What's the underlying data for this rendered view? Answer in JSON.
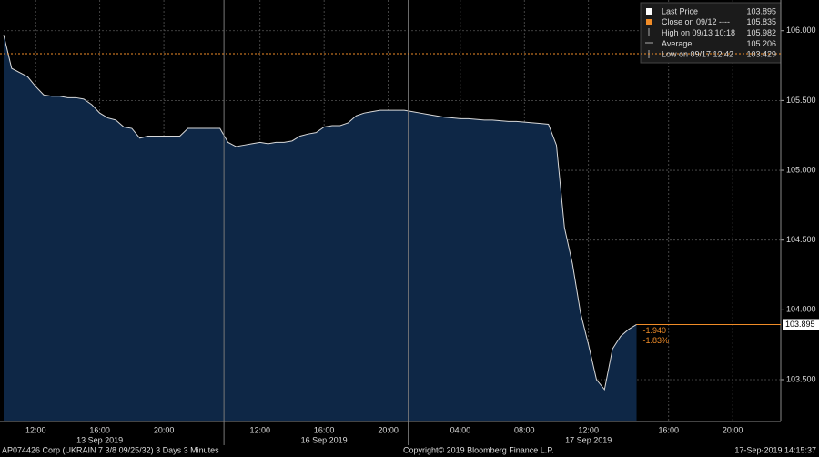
{
  "chart_data": {
    "type": "area",
    "color": "#0e2746",
    "line_color": "#d8d8d8",
    "ref_color": "#f08c28",
    "grid": true,
    "x": [
      "13 Sep 2019 10:00",
      "13 Sep 2019 10:30",
      "13 Sep 2019 11:00",
      "13 Sep 2019 11:30",
      "13 Sep 2019 12:00",
      "13 Sep 2019 12:30",
      "13 Sep 2019 13:00",
      "13 Sep 2019 13:30",
      "13 Sep 2019 14:00",
      "13 Sep 2019 14:30",
      "13 Sep 2019 15:00",
      "13 Sep 2019 15:30",
      "13 Sep 2019 16:00",
      "13 Sep 2019 16:30",
      "13 Sep 2019 17:00",
      "13 Sep 2019 17:30",
      "13 Sep 2019 18:00",
      "13 Sep 2019 18:30",
      "13 Sep 2019 19:00",
      "13 Sep 2019 19:30",
      "13 Sep 2019 20:00",
      "13 Sep 2019 20:30",
      "13 Sep 2019 21:00",
      "13 Sep 2019 21:30",
      "13 Sep 2019 22:00",
      "13 Sep 2019 22:30",
      "13 Sep 2019 23:00",
      "13 Sep 2019 23:30",
      "16 Sep 2019 10:00",
      "16 Sep 2019 10:30",
      "16 Sep 2019 11:00",
      "16 Sep 2019 11:30",
      "16 Sep 2019 12:00",
      "16 Sep 2019 12:30",
      "16 Sep 2019 13:00",
      "16 Sep 2019 13:30",
      "16 Sep 2019 14:00",
      "16 Sep 2019 14:30",
      "16 Sep 2019 15:00",
      "16 Sep 2019 15:30",
      "16 Sep 2019 16:00",
      "16 Sep 2019 16:30",
      "16 Sep 2019 17:00",
      "16 Sep 2019 17:30",
      "16 Sep 2019 18:00",
      "16 Sep 2019 18:30",
      "16 Sep 2019 19:00",
      "16 Sep 2019 19:30",
      "16 Sep 2019 20:00",
      "16 Sep 2019 20:30",
      "16 Sep 2019 21:00",
      "16 Sep 2019 22:00",
      "16 Sep 2019 23:00",
      "17 Sep 2019 00:00",
      "17 Sep 2019 01:00",
      "17 Sep 2019 02:00",
      "17 Sep 2019 03:00",
      "17 Sep 2019 04:00",
      "17 Sep 2019 04:30",
      "17 Sep 2019 05:00",
      "17 Sep 2019 05:30",
      "17 Sep 2019 06:00",
      "17 Sep 2019 06:30",
      "17 Sep 2019 07:00",
      "17 Sep 2019 07:30",
      "17 Sep 2019 08:00",
      "17 Sep 2019 08:30",
      "17 Sep 2019 09:00",
      "17 Sep 2019 09:30",
      "17 Sep 2019 10:00",
      "17 Sep 2019 10:30",
      "17 Sep 2019 11:00",
      "17 Sep 2019 11:30",
      "17 Sep 2019 12:00",
      "17 Sep 2019 12:30",
      "17 Sep 2019 12:42",
      "17 Sep 2019 13:00",
      "17 Sep 2019 13:30",
      "17 Sep 2019 14:00",
      "17 Sep 2019 14:15",
      "17 Sep 2019 14:30",
      "17 Sep 2019 15:00",
      "17 Sep 2019 15:30",
      "17 Sep 2019 16:00",
      "17 Sep 2019 16:30",
      "17 Sep 2019 17:00",
      "17 Sep 2019 17:30",
      "17 Sep 2019 18:00",
      "17 Sep 2019 18:30",
      "17 Sep 2019 19:00",
      "17 Sep 2019 19:30",
      "17 Sep 2019 20:00",
      "17 Sep 2019 20:30",
      "17 Sep 2019 21:00",
      "17 Sep 2019 21:30",
      "17 Sep 2019 22:00",
      "17 Sep 2019 22:30",
      "17 Sep 2019 23:00"
    ],
    "series": [
      {
        "name": "Last Price",
        "values": [
          105.97,
          105.73,
          105.7,
          105.67,
          105.6,
          105.54,
          105.53,
          105.53,
          105.52,
          105.52,
          105.51,
          105.47,
          105.41,
          105.375,
          105.36,
          105.31,
          105.3,
          105.23,
          105.245,
          105.245,
          105.245,
          105.245,
          105.245,
          105.3,
          105.3,
          105.3,
          105.3,
          105.3,
          105.2,
          105.17,
          105.18,
          105.19,
          105.2,
          105.19,
          105.2,
          105.2,
          105.21,
          105.245,
          105.26,
          105.27,
          105.31,
          105.32,
          105.32,
          105.34,
          105.39,
          105.41,
          105.42,
          105.43,
          105.43,
          105.43,
          105.43,
          105.42,
          105.41,
          105.4,
          105.39,
          105.38,
          105.375,
          105.37,
          105.37,
          105.365,
          105.36,
          105.36,
          105.355,
          105.35,
          105.35,
          105.345,
          105.34,
          105.335,
          105.33,
          105.18,
          104.59,
          104.33,
          103.98,
          103.75,
          103.5,
          103.429,
          103.72,
          103.81,
          103.86,
          103.895,
          null,
          null,
          null,
          null,
          null,
          null,
          null,
          null,
          null,
          null,
          null,
          null,
          null,
          null,
          null,
          null,
          null,
          null
        ]
      }
    ],
    "ylim": [
      103.2,
      106.22
    ],
    "yticks": [
      {
        "value": 103.5,
        "label": "103.500"
      },
      {
        "value": 104,
        "label": "104.000"
      },
      {
        "value": 104.5,
        "label": "104.500"
      },
      {
        "value": 105,
        "label": "105.000"
      },
      {
        "value": 105.5,
        "label": "105.500"
      },
      {
        "value": 106,
        "label": "106.000"
      }
    ],
    "xticks": [
      {
        "value": "13 Sep 2019 12:00",
        "label": "12:00"
      },
      {
        "value": "13 Sep 2019 16:00",
        "label": "16:00"
      },
      {
        "value": "13 Sep 2019 20:00",
        "label": "20:00"
      },
      {
        "value": "16 Sep 2019 12:00",
        "label": "12:00"
      },
      {
        "value": "16 Sep 2019 16:00",
        "label": "16:00"
      },
      {
        "value": "16 Sep 2019 20:00",
        "label": "20:00"
      },
      {
        "value": "17 Sep 2019 04:00",
        "label": "04:00"
      },
      {
        "value": "17 Sep 2019 08:00",
        "label": "08:00"
      },
      {
        "value": "17 Sep 2019 12:00",
        "label": "12:00"
      },
      {
        "value": "17 Sep 2019 16:00",
        "label": "16:00"
      },
      {
        "value": "17 Sep 2019 20:00",
        "label": "20:00"
      }
    ],
    "xdates": [
      {
        "value": "13 Sep 2019 16:00",
        "label": "13 Sep 2019"
      },
      {
        "value": "16 Sep 2019 16:00",
        "label": "16 Sep 2019"
      },
      {
        "value": "17 Sep 2019 12:00",
        "label": "17 Sep 2019"
      }
    ],
    "day_breaks": [
      "16 Sep 2019 10:00",
      "16 Sep 2019 22:00"
    ],
    "legend": [
      {
        "label": "Last Price",
        "value": 103.895
      },
      {
        "label": "Close on 09/12 ----",
        "value": 105.835
      },
      {
        "label": "High on 09/13 10:18",
        "value": 105.982
      },
      {
        "label": "Average",
        "value": 105.206
      },
      {
        "label": "Low on 09/17 12:42",
        "value": 103.429
      }
    ],
    "annotations": [
      "-1.940",
      "-1.83%"
    ],
    "security": "AP074426 Corp (UKRAIN 7 3/8 09/25/32) 3 Days 3 Minutes",
    "copyright": "Copyright© 2019 Bloomberg Finance L.P.",
    "timestamp": "17-Sep-2019 14:15:37"
  }
}
